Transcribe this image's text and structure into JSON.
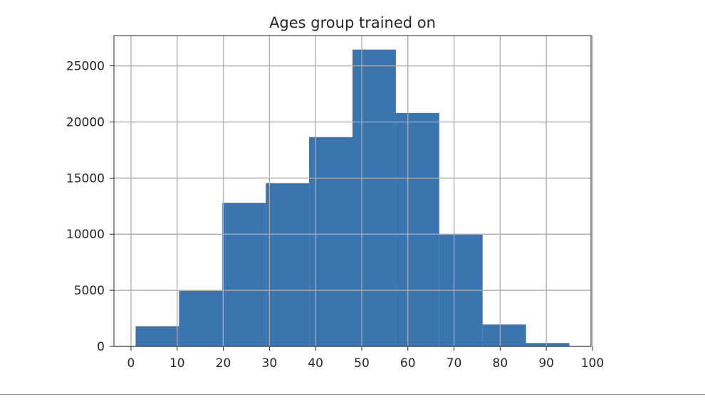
{
  "chart_data": {
    "type": "bar",
    "title": "Ages group trained on",
    "xlabel": "",
    "ylabel": "",
    "xlim": [
      -3.7,
      99.7
    ],
    "ylim": [
      0,
      27700
    ],
    "x_ticks": [
      0,
      10,
      20,
      30,
      40,
      50,
      60,
      70,
      80,
      90,
      100
    ],
    "y_ticks": [
      0,
      5000,
      10000,
      15000,
      20000,
      25000
    ],
    "bin_edges": [
      1,
      10.4,
      19.8,
      29.2,
      38.6,
      48,
      57.4,
      66.8,
      76.2,
      85.6,
      95
    ],
    "values": [
      1800,
      4950,
      12800,
      14550,
      18650,
      26450,
      20800,
      9950,
      1950,
      300
    ],
    "grid": true,
    "bar_color": "#3a75b0",
    "grid_color": "#b0b0b0"
  }
}
